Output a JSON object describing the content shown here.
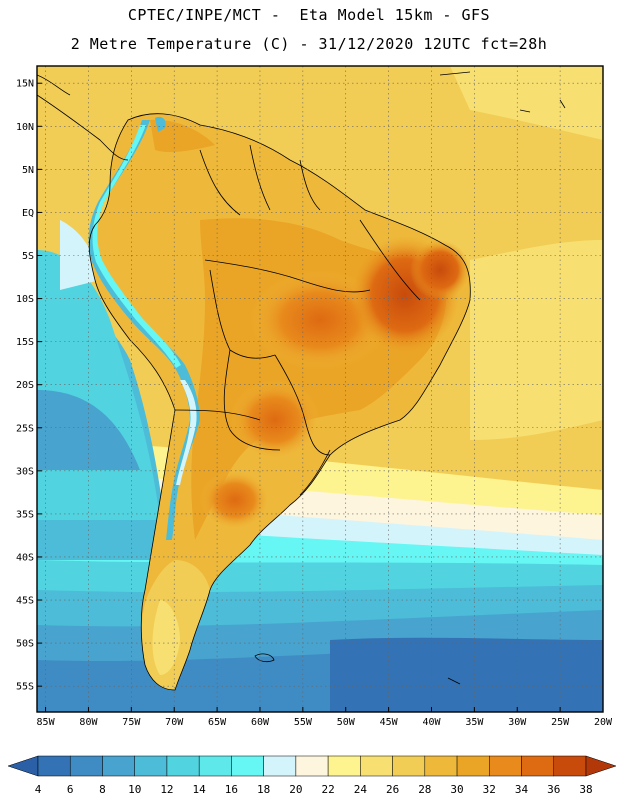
{
  "header": {
    "line1": "CPTEC/INPE/MCT -  Eta Model 15km - GFS",
    "line2": "2 Metre Temperature (C) - 31/12/2020 12UTC fct=28h"
  },
  "map": {
    "lat_range": [
      -58,
      17
    ],
    "lon_range": [
      -86,
      -20
    ],
    "lat_ticks": [
      {
        "value": 15,
        "label": "15N"
      },
      {
        "value": 10,
        "label": "10N"
      },
      {
        "value": 5,
        "label": "5N"
      },
      {
        "value": 0,
        "label": "EQ"
      },
      {
        "value": -5,
        "label": "5S"
      },
      {
        "value": -10,
        "label": "10S"
      },
      {
        "value": -15,
        "label": "15S"
      },
      {
        "value": -20,
        "label": "20S"
      },
      {
        "value": -25,
        "label": "25S"
      },
      {
        "value": -30,
        "label": "30S"
      },
      {
        "value": -35,
        "label": "35S"
      },
      {
        "value": -40,
        "label": "40S"
      },
      {
        "value": -45,
        "label": "45S"
      },
      {
        "value": -50,
        "label": "50S"
      },
      {
        "value": -55,
        "label": "55S"
      }
    ],
    "lon_ticks": [
      {
        "value": -85,
        "label": "85W"
      },
      {
        "value": -80,
        "label": "80W"
      },
      {
        "value": -75,
        "label": "75W"
      },
      {
        "value": -70,
        "label": "70W"
      },
      {
        "value": -65,
        "label": "65W"
      },
      {
        "value": -60,
        "label": "60W"
      },
      {
        "value": -55,
        "label": "55W"
      },
      {
        "value": -50,
        "label": "50W"
      },
      {
        "value": -45,
        "label": "45W"
      },
      {
        "value": -40,
        "label": "40W"
      },
      {
        "value": -35,
        "label": "35W"
      },
      {
        "value": -30,
        "label": "30W"
      },
      {
        "value": -25,
        "label": "25W"
      },
      {
        "value": -20,
        "label": "20W"
      }
    ]
  },
  "colorbar": {
    "levels": [
      "4",
      "6",
      "8",
      "10",
      "12",
      "14",
      "16",
      "18",
      "20",
      "22",
      "24",
      "26",
      "28",
      "30",
      "32",
      "34",
      "36",
      "38"
    ],
    "colors": [
      "#2b5fa6",
      "#3372b4",
      "#3f8cc4",
      "#48a3cf",
      "#4cbcd8",
      "#52d3e0",
      "#5ee8ea",
      "#66f6f3",
      "#d4f4fb",
      "#fdf5dd",
      "#fdf38f",
      "#f7e071",
      "#f2cd55",
      "#eeb93a",
      "#eba526",
      "#e88a1c",
      "#de6a12",
      "#c84b0c",
      "#b2380a"
    ]
  }
}
